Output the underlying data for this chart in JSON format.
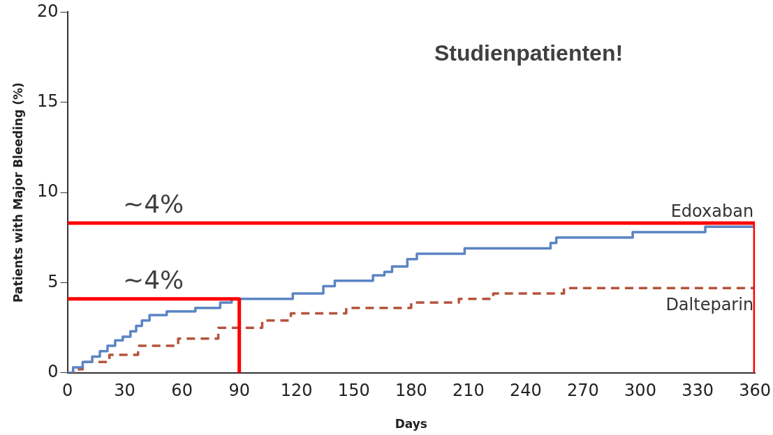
{
  "chart_data": {
    "type": "step",
    "title": "Studienpatienten!",
    "xlabel": "Days",
    "ylabel": "Patients with Major Bleeding (%)",
    "xlim": [
      0,
      360
    ],
    "xticks": [
      0,
      30,
      60,
      90,
      120,
      150,
      180,
      210,
      240,
      270,
      300,
      330,
      360
    ],
    "ylim": [
      0,
      20
    ],
    "yticks": [
      0,
      5,
      10,
      15,
      20
    ],
    "grid": false,
    "legend": false,
    "marker": "none",
    "series": [
      {
        "name": "Edoxaban",
        "color": "#5b84c4",
        "line_style": "solid",
        "x": [
          0,
          3,
          8,
          13,
          17,
          21,
          25,
          29,
          33,
          36,
          39,
          43,
          52,
          67,
          80,
          86,
          118,
          134,
          140,
          160,
          166,
          170,
          178,
          183,
          208,
          253,
          256,
          296,
          334,
          360
        ],
        "values": [
          0,
          0.3,
          0.6,
          0.9,
          1.2,
          1.5,
          1.8,
          2.0,
          2.3,
          2.6,
          2.9,
          3.2,
          3.4,
          3.6,
          3.9,
          4.1,
          4.4,
          4.8,
          5.1,
          5.4,
          5.6,
          5.9,
          6.3,
          6.6,
          6.9,
          7.2,
          7.5,
          7.8,
          8.1,
          8.1
        ]
      },
      {
        "name": "Dalteparin",
        "color": "#b5533c",
        "line_style": "dashed",
        "x": [
          0,
          4,
          8,
          22,
          37,
          58,
          79,
          102,
          117,
          146,
          180,
          205,
          223,
          260,
          360
        ],
        "values": [
          0,
          0.2,
          0.6,
          1.0,
          1.5,
          1.9,
          2.5,
          2.9,
          3.3,
          3.6,
          3.9,
          4.1,
          4.4,
          4.7,
          4.7
        ]
      },
      {
        "type": "line",
        "color": "#ff0000",
        "line_style": "solid",
        "x": [
          0,
          360,
          360
        ],
        "values": [
          8.3,
          8.3,
          0
        ]
      },
      {
        "type": "line",
        "color": "#ff0000",
        "line_style": "solid",
        "x": [
          0,
          90,
          90
        ],
        "values": [
          4.1,
          4.1,
          0
        ]
      }
    ],
    "annotations": [
      {
        "text": "~4%",
        "x": 45,
        "y": 8.3
      },
      {
        "text": "~4%",
        "x": 45,
        "y": 4.1
      }
    ]
  }
}
